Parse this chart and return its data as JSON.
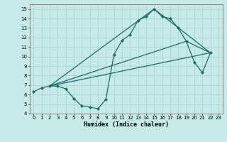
{
  "xlabel": "Humidex (Indice chaleur)",
  "bg_color": "#c5eae8",
  "grid_color": "#aed4d1",
  "line_color": "#1a6b6b",
  "xlim": [
    -0.5,
    23.5
  ],
  "ylim": [
    4,
    15.5
  ],
  "xticks": [
    0,
    1,
    2,
    3,
    4,
    5,
    6,
    7,
    8,
    9,
    10,
    11,
    12,
    13,
    14,
    15,
    16,
    17,
    18,
    19,
    20,
    21,
    22,
    23
  ],
  "yticks": [
    4,
    5,
    6,
    7,
    8,
    9,
    10,
    11,
    12,
    13,
    14,
    15
  ],
  "main_series": {
    "x": [
      0,
      1,
      2,
      3,
      4,
      5,
      6,
      7,
      8,
      9,
      10,
      11,
      12,
      13,
      14,
      15,
      16,
      17,
      18,
      19,
      20,
      21,
      22
    ],
    "y": [
      6.3,
      6.7,
      6.9,
      6.9,
      6.6,
      5.6,
      4.8,
      4.7,
      4.5,
      5.5,
      10.2,
      11.7,
      12.3,
      13.8,
      14.2,
      15.0,
      14.2,
      14.0,
      13.0,
      11.6,
      9.4,
      8.3,
      10.4
    ]
  },
  "straight_lines": [
    {
      "x": [
        2,
        22
      ],
      "y": [
        6.9,
        10.4
      ]
    },
    {
      "x": [
        2,
        15,
        22
      ],
      "y": [
        6.9,
        15.0,
        10.4
      ]
    },
    {
      "x": [
        2,
        19,
        22
      ],
      "y": [
        6.9,
        11.6,
        10.4
      ]
    }
  ]
}
